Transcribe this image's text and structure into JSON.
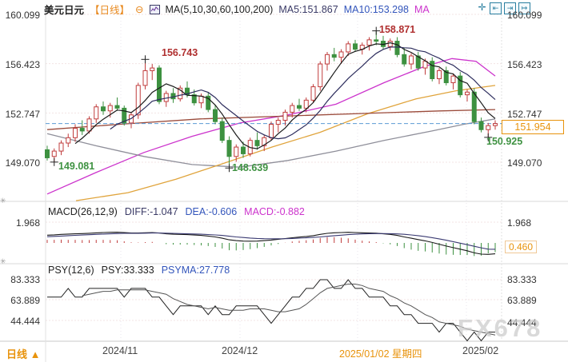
{
  "header": {
    "symbol": "美元日元",
    "period": "【日线】",
    "collapse": "⊖",
    "ma_settings": "MA(5,10,30,60,100,200)",
    "ma5": "MA5:151.867",
    "ma10": "MA10:153.298",
    "ma30": "MA",
    "icons": [
      "✛",
      "⇤",
      "⇥",
      "↦"
    ]
  },
  "axes": {
    "main_left": [
      "160.099",
      "156.423",
      "152.747",
      "149.070"
    ],
    "main_right": [
      "160.099",
      "156.423",
      "152.747",
      "149.070"
    ],
    "macd_left": "1.968",
    "macd_right": "1.968",
    "macd_current": "0.460",
    "psy_left": [
      "83.333",
      "63.889",
      "44.444"
    ],
    "psy_right": [
      "83.333",
      "63.889",
      "44.444"
    ]
  },
  "annotations": {
    "low1": "149.081",
    "high1": "156.743",
    "low2": "148.639",
    "high2": "158.871",
    "low3": "150.925",
    "current_price": "151.954"
  },
  "macd_header": {
    "title": "MACD(26,12,9)",
    "diff": "DIFF:-1.047",
    "dea": "DEA:-0.606",
    "macd": "MACD:-0.882"
  },
  "psy_header": {
    "title": "PSY(12,6)",
    "psy": "PSY:33.333",
    "psyma": "PSYMA:27.778"
  },
  "bottom": {
    "period": "日线",
    "arrow": "▲",
    "dates": [
      "2024/11",
      "2024/12",
      "2025/01/02 星期四",
      "2025/02"
    ]
  },
  "watermark": "FX678",
  "pane_icon": "✳",
  "colors": {
    "up": "#c03c3c",
    "down": "#3d9140",
    "accent_orange": "#e8930c",
    "dashed_line": "#5b9bd5",
    "ma5": "#1a1a1a",
    "ma10": "#2e2e5e",
    "ma30": "#cc33cc",
    "ma60": "#8f8f9a",
    "ma100": "#e0a43c",
    "ma200": "#9a4a3a"
  },
  "chart_data": {
    "type": "candlestick",
    "title": "美元日元 日线 (USD/JPY Daily)",
    "price_axis_ticks": [
      160.099,
      156.423,
      152.747,
      149.07
    ],
    "current_price": 151.954,
    "x_axis_ticks": [
      "2024/11",
      "2024/12",
      "2025/01/02 星期四",
      "2025/02"
    ],
    "candles": [
      [
        150.0,
        150.3,
        149.2,
        149.4
      ],
      [
        149.5,
        150.1,
        149.081,
        149.9
      ],
      [
        149.9,
        150.7,
        149.6,
        150.5
      ],
      [
        150.5,
        151.2,
        150.2,
        150.9
      ],
      [
        150.9,
        151.9,
        150.6,
        151.6
      ],
      [
        151.6,
        152.2,
        151.1,
        151.4
      ],
      [
        151.4,
        152.5,
        151.2,
        152.3
      ],
      [
        152.3,
        153.4,
        152.0,
        153.2
      ],
      [
        153.2,
        153.6,
        152.6,
        152.9
      ],
      [
        152.9,
        153.5,
        152.4,
        153.3
      ],
      [
        153.3,
        153.9,
        152.9,
        153.1
      ],
      [
        153.1,
        153.3,
        151.8,
        152.0
      ],
      [
        152.0,
        152.8,
        151.6,
        152.6
      ],
      [
        152.6,
        155.0,
        152.3,
        154.8
      ],
      [
        154.8,
        156.743,
        154.5,
        155.9
      ],
      [
        155.9,
        156.4,
        155.2,
        156.1
      ],
      [
        156.1,
        156.3,
        153.4,
        153.6
      ],
      [
        153.6,
        154.4,
        153.2,
        154.2
      ],
      [
        154.2,
        154.6,
        153.5,
        153.8
      ],
      [
        153.8,
        154.8,
        153.6,
        154.6
      ],
      [
        154.6,
        155.1,
        153.9,
        154.1
      ],
      [
        154.1,
        154.5,
        153.3,
        153.5
      ],
      [
        153.5,
        154.2,
        153.1,
        154.0
      ],
      [
        154.0,
        154.3,
        152.8,
        153.0
      ],
      [
        153.0,
        153.3,
        151.9,
        152.1
      ],
      [
        152.1,
        152.4,
        150.5,
        150.7
      ],
      [
        150.7,
        151.0,
        148.639,
        149.5
      ],
      [
        149.5,
        150.4,
        149.1,
        150.2
      ],
      [
        150.2,
        150.6,
        149.4,
        149.7
      ],
      [
        149.7,
        150.9,
        149.5,
        150.7
      ],
      [
        150.7,
        151.3,
        150.0,
        150.3
      ],
      [
        150.3,
        151.1,
        149.9,
        150.9
      ],
      [
        150.9,
        152.1,
        150.7,
        151.9
      ],
      [
        151.9,
        152.4,
        151.3,
        152.2
      ],
      [
        152.2,
        153.0,
        151.8,
        152.8
      ],
      [
        152.8,
        153.5,
        152.4,
        153.3
      ],
      [
        153.3,
        153.8,
        152.9,
        153.1
      ],
      [
        153.1,
        153.9,
        152.8,
        153.7
      ],
      [
        153.7,
        154.9,
        153.5,
        154.7
      ],
      [
        154.7,
        156.6,
        154.4,
        156.4
      ],
      [
        156.4,
        157.3,
        155.9,
        157.1
      ],
      [
        157.1,
        157.6,
        156.6,
        156.9
      ],
      [
        156.9,
        157.5,
        156.4,
        157.3
      ],
      [
        157.3,
        158.1,
        157.0,
        157.9
      ],
      [
        157.9,
        158.2,
        157.3,
        157.5
      ],
      [
        157.5,
        158.0,
        157.1,
        157.8
      ],
      [
        157.8,
        158.4,
        157.4,
        158.2
      ],
      [
        158.2,
        158.871,
        157.8,
        158.1
      ],
      [
        158.1,
        158.5,
        157.5,
        157.7
      ],
      [
        157.7,
        158.3,
        157.4,
        158.1
      ],
      [
        158.1,
        158.4,
        156.9,
        157.1
      ],
      [
        157.1,
        157.6,
        156.2,
        156.4
      ],
      [
        156.4,
        157.2,
        156.0,
        157.0
      ],
      [
        157.0,
        157.3,
        155.9,
        156.1
      ],
      [
        156.1,
        156.8,
        155.6,
        156.6
      ],
      [
        156.6,
        156.9,
        155.1,
        155.3
      ],
      [
        155.3,
        156.1,
        154.9,
        155.9
      ],
      [
        155.9,
        156.2,
        154.8,
        155.0
      ],
      [
        155.0,
        155.7,
        154.5,
        155.5
      ],
      [
        155.5,
        155.8,
        153.9,
        154.1
      ],
      [
        154.1,
        154.5,
        153.6,
        154.3
      ],
      [
        154.3,
        154.6,
        151.9,
        152.1
      ],
      [
        152.1,
        152.4,
        151.3,
        151.5
      ],
      [
        151.5,
        152.0,
        150.925,
        151.8
      ],
      [
        151.8,
        152.2,
        151.5,
        151.954
      ]
    ],
    "markers": [
      {
        "i": 1,
        "price": 149.081
      },
      {
        "i": 14,
        "price": 156.743
      },
      {
        "i": 26,
        "price": 148.639
      },
      {
        "i": 47,
        "price": 158.871
      },
      {
        "i": 63,
        "price": 150.925
      }
    ],
    "overlays": [
      {
        "name": "ma30",
        "color": "#cc33cc",
        "points": [
          [
            59,
            146.7
          ],
          [
            120,
            148.3
          ],
          [
            180,
            149.8
          ],
          [
            240,
            151.0
          ],
          [
            300,
            152.0
          ],
          [
            360,
            152.6
          ],
          [
            420,
            153.4
          ],
          [
            480,
            155.0
          ],
          [
            530,
            156.2
          ],
          [
            565,
            156.8
          ],
          [
            595,
            156.6
          ],
          [
            619,
            155.5
          ]
        ]
      },
      {
        "name": "ma60",
        "color": "#8f8f9a",
        "points": [
          [
            59,
            151.2
          ],
          [
            120,
            150.3
          ],
          [
            180,
            149.5
          ],
          [
            240,
            148.9
          ],
          [
            300,
            148.7
          ],
          [
            360,
            149.2
          ],
          [
            420,
            149.9
          ],
          [
            480,
            150.7
          ],
          [
            540,
            151.4
          ],
          [
            580,
            151.9
          ],
          [
            619,
            152.3
          ]
        ]
      },
      {
        "name": "ma100",
        "color": "#e0a43c",
        "points": [
          [
            95,
            146.2
          ],
          [
            160,
            146.8
          ],
          [
            220,
            147.8
          ],
          [
            280,
            149.0
          ],
          [
            340,
            150.2
          ],
          [
            400,
            151.3
          ],
          [
            460,
            152.7
          ],
          [
            520,
            153.8
          ],
          [
            570,
            154.4
          ],
          [
            619,
            154.8
          ]
        ]
      },
      {
        "name": "ma200",
        "color": "#9a4a3a",
        "points": [
          [
            59,
            151.5
          ],
          [
            150,
            151.9
          ],
          [
            250,
            152.3
          ],
          [
            350,
            152.5
          ],
          [
            450,
            152.7
          ],
          [
            550,
            152.9
          ],
          [
            619,
            153.0
          ]
        ]
      }
    ],
    "macd": {
      "params": "26,12,9",
      "diff_last": -1.047,
      "dea_last": -0.606,
      "macd_last": -0.882,
      "axis_max": 1.968,
      "right_current": 0.46,
      "diff": [
        0.75,
        0.78,
        0.82,
        0.85,
        0.88,
        0.9,
        0.93,
        0.97,
        1.0,
        1.02,
        1.03,
        1.0,
        0.96,
        0.95,
        0.98,
        1.0,
        0.95,
        0.88,
        0.84,
        0.82,
        0.8,
        0.76,
        0.72,
        0.66,
        0.58,
        0.45,
        0.3,
        0.22,
        0.18,
        0.17,
        0.18,
        0.22,
        0.28,
        0.35,
        0.42,
        0.5,
        0.56,
        0.62,
        0.7,
        0.82,
        0.92,
        0.98,
        1.0,
        1.02,
        1.0,
        0.98,
        0.96,
        0.94,
        0.88,
        0.82,
        0.72,
        0.58,
        0.45,
        0.32,
        0.2,
        0.05,
        -0.12,
        -0.3,
        -0.45,
        -0.6,
        -0.75,
        -0.95,
        -1.08,
        -1.1,
        -1.047
      ],
      "dea": [
        0.6,
        0.63,
        0.66,
        0.7,
        0.73,
        0.76,
        0.79,
        0.82,
        0.85,
        0.88,
        0.9,
        0.92,
        0.93,
        0.93,
        0.94,
        0.95,
        0.95,
        0.94,
        0.92,
        0.9,
        0.88,
        0.86,
        0.84,
        0.81,
        0.77,
        0.72,
        0.65,
        0.58,
        0.52,
        0.47,
        0.43,
        0.41,
        0.4,
        0.4,
        0.41,
        0.43,
        0.46,
        0.49,
        0.53,
        0.58,
        0.64,
        0.7,
        0.75,
        0.8,
        0.84,
        0.87,
        0.89,
        0.9,
        0.9,
        0.89,
        0.87,
        0.83,
        0.77,
        0.7,
        0.61,
        0.51,
        0.39,
        0.26,
        0.12,
        -0.02,
        -0.17,
        -0.32,
        -0.47,
        -0.6,
        -0.606
      ]
    },
    "psy": {
      "params": "12,6",
      "psy_last": 33.333,
      "psyma_last": 27.778,
      "axis_ticks": [
        83.333,
        63.889,
        44.444
      ],
      "values": [
        66.7,
        66.7,
        66.7,
        75,
        66.7,
        66.7,
        75,
        75,
        75,
        75,
        75,
        66.7,
        75,
        75,
        75,
        66.7,
        66.7,
        58.3,
        50,
        58.3,
        58.3,
        58.3,
        58.3,
        50,
        58.3,
        50,
        50,
        58.3,
        58.3,
        58.3,
        58.3,
        50,
        41.7,
        50,
        58.3,
        66.7,
        66.7,
        75,
        75,
        83.3,
        83.3,
        75,
        75,
        83.3,
        75,
        75,
        66.7,
        66.7,
        66.7,
        58.3,
        58.3,
        50,
        50,
        41.7,
        41.7,
        41.7,
        33.3,
        41.7,
        41.7,
        33.3,
        25,
        33.3,
        25,
        33.3,
        33.333
      ]
    }
  }
}
